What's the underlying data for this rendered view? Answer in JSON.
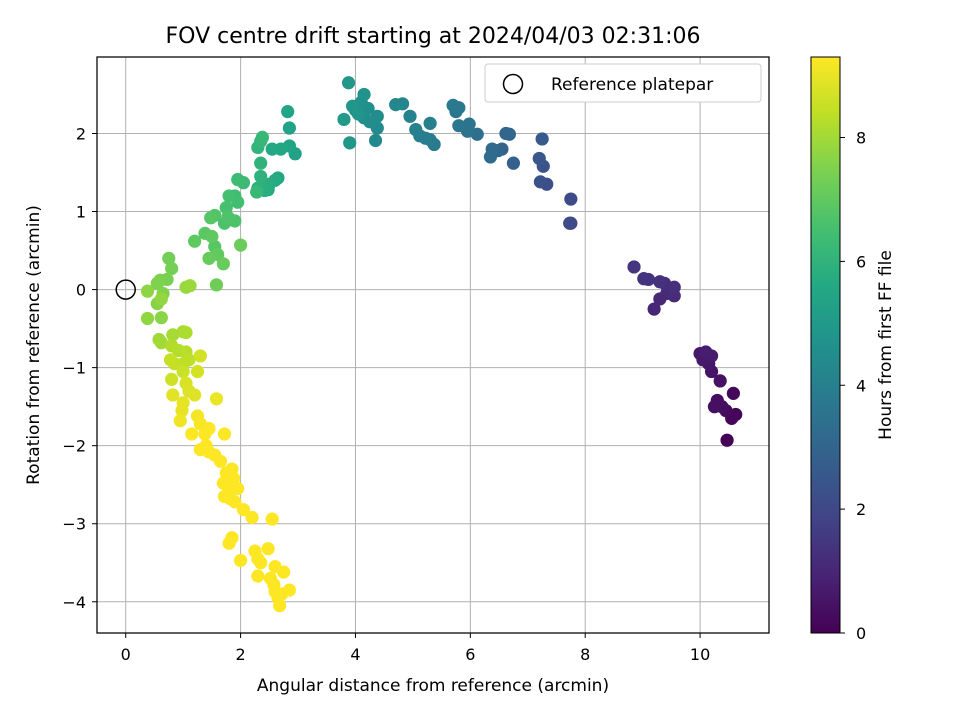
{
  "chart_data": {
    "type": "scatter",
    "title": "FOV centre drift starting at 2024/04/03 02:31:06",
    "xlabel": "Angular distance from reference (arcmin)",
    "ylabel": "Rotation from reference (arcmin)",
    "colorbar_label": "Hours from first FF file",
    "xlim": [
      -0.5,
      11.2
    ],
    "ylim": [
      -4.4,
      2.98
    ],
    "clim": [
      0,
      9.3
    ],
    "colormap": "viridis",
    "x_ticks": [
      0,
      2,
      4,
      6,
      8,
      10
    ],
    "y_ticks": [
      -4,
      -3,
      -2,
      -1,
      0,
      1,
      2
    ],
    "colorbar_ticks": [
      0,
      2,
      4,
      6,
      8
    ],
    "grid": true,
    "legend": {
      "position": "top-right",
      "entries": [
        "Reference platepar"
      ]
    },
    "reference_point": {
      "x": 0,
      "y": 0
    },
    "points": [
      {
        "x": 10.47,
        "y": -1.93,
        "h": 0.05
      },
      {
        "x": 10.62,
        "y": -1.6,
        "h": 0.1
      },
      {
        "x": 10.55,
        "y": -1.65,
        "h": 0.15
      },
      {
        "x": 10.58,
        "y": -1.33,
        "h": 0.2
      },
      {
        "x": 10.45,
        "y": -1.55,
        "h": 0.25
      },
      {
        "x": 10.3,
        "y": -1.42,
        "h": 0.3
      },
      {
        "x": 10.38,
        "y": -1.5,
        "h": 0.35
      },
      {
        "x": 10.25,
        "y": -1.5,
        "h": 0.4
      },
      {
        "x": 10.35,
        "y": -1.17,
        "h": 0.45
      },
      {
        "x": 10.2,
        "y": -1.05,
        "h": 0.5
      },
      {
        "x": 10.15,
        "y": -0.95,
        "h": 0.55
      },
      {
        "x": 10.0,
        "y": -0.82,
        "h": 0.6
      },
      {
        "x": 10.05,
        "y": -0.9,
        "h": 0.65
      },
      {
        "x": 10.2,
        "y": -0.85,
        "h": 0.7
      },
      {
        "x": 10.1,
        "y": -0.8,
        "h": 0.75
      },
      {
        "x": 9.2,
        "y": -0.25,
        "h": 1.0
      },
      {
        "x": 9.3,
        "y": -0.12,
        "h": 1.05
      },
      {
        "x": 9.42,
        "y": -0.05,
        "h": 1.1
      },
      {
        "x": 9.55,
        "y": -0.08,
        "h": 1.15
      },
      {
        "x": 9.38,
        "y": 0.08,
        "h": 1.2
      },
      {
        "x": 9.55,
        "y": 0.03,
        "h": 1.25
      },
      {
        "x": 9.3,
        "y": 0.1,
        "h": 1.3
      },
      {
        "x": 9.1,
        "y": 0.13,
        "h": 1.35
      },
      {
        "x": 9.02,
        "y": 0.14,
        "h": 1.4
      },
      {
        "x": 8.85,
        "y": 0.29,
        "h": 1.45
      },
      {
        "x": 7.75,
        "y": 0.85,
        "h": 2.0
      },
      {
        "x": 7.73,
        "y": 0.85,
        "h": 2.05
      },
      {
        "x": 7.75,
        "y": 1.16,
        "h": 2.1
      },
      {
        "x": 7.33,
        "y": 1.35,
        "h": 2.2
      },
      {
        "x": 7.22,
        "y": 1.38,
        "h": 2.3
      },
      {
        "x": 7.27,
        "y": 1.58,
        "h": 2.4
      },
      {
        "x": 7.2,
        "y": 1.68,
        "h": 2.5
      },
      {
        "x": 7.25,
        "y": 1.93,
        "h": 2.6
      },
      {
        "x": 6.75,
        "y": 1.62,
        "h": 2.8
      },
      {
        "x": 6.55,
        "y": 1.8,
        "h": 2.9
      },
      {
        "x": 6.62,
        "y": 2.0,
        "h": 3.0
      },
      {
        "x": 6.68,
        "y": 1.99,
        "h": 3.05
      },
      {
        "x": 6.48,
        "y": 1.78,
        "h": 3.1
      },
      {
        "x": 6.35,
        "y": 1.7,
        "h": 3.2
      },
      {
        "x": 6.38,
        "y": 1.8,
        "h": 3.25
      },
      {
        "x": 6.12,
        "y": 1.99,
        "h": 3.4
      },
      {
        "x": 5.95,
        "y": 2.03,
        "h": 3.5
      },
      {
        "x": 5.98,
        "y": 2.12,
        "h": 3.55
      },
      {
        "x": 5.8,
        "y": 2.1,
        "h": 3.6
      },
      {
        "x": 5.75,
        "y": 2.28,
        "h": 3.65
      },
      {
        "x": 5.8,
        "y": 2.33,
        "h": 3.7
      },
      {
        "x": 5.7,
        "y": 2.36,
        "h": 3.75
      },
      {
        "x": 5.37,
        "y": 1.86,
        "h": 3.8
      },
      {
        "x": 5.3,
        "y": 1.92,
        "h": 3.85
      },
      {
        "x": 5.22,
        "y": 1.94,
        "h": 3.9
      },
      {
        "x": 5.12,
        "y": 1.97,
        "h": 3.95
      },
      {
        "x": 5.05,
        "y": 2.05,
        "h": 4.0
      },
      {
        "x": 5.3,
        "y": 2.13,
        "h": 4.05
      },
      {
        "x": 4.95,
        "y": 2.22,
        "h": 4.1
      },
      {
        "x": 4.82,
        "y": 2.38,
        "h": 4.2
      },
      {
        "x": 4.7,
        "y": 2.37,
        "h": 4.25
      },
      {
        "x": 4.35,
        "y": 1.91,
        "h": 4.35
      },
      {
        "x": 4.38,
        "y": 2.07,
        "h": 4.4
      },
      {
        "x": 4.38,
        "y": 2.22,
        "h": 4.45
      },
      {
        "x": 4.25,
        "y": 2.15,
        "h": 4.5
      },
      {
        "x": 4.15,
        "y": 2.2,
        "h": 4.55
      },
      {
        "x": 4.22,
        "y": 2.32,
        "h": 4.6
      },
      {
        "x": 4.1,
        "y": 2.4,
        "h": 4.65
      },
      {
        "x": 4.15,
        "y": 2.5,
        "h": 4.7
      },
      {
        "x": 4.0,
        "y": 2.3,
        "h": 4.75
      },
      {
        "x": 4.05,
        "y": 2.25,
        "h": 4.8
      },
      {
        "x": 3.95,
        "y": 2.35,
        "h": 4.85
      },
      {
        "x": 3.9,
        "y": 1.88,
        "h": 4.9
      },
      {
        "x": 3.88,
        "y": 2.65,
        "h": 4.95
      },
      {
        "x": 3.8,
        "y": 2.18,
        "h": 5.0
      },
      {
        "x": 2.95,
        "y": 1.74,
        "h": 5.3
      },
      {
        "x": 2.85,
        "y": 2.07,
        "h": 5.35
      },
      {
        "x": 2.82,
        "y": 2.28,
        "h": 5.4
      },
      {
        "x": 2.85,
        "y": 1.84,
        "h": 5.45
      },
      {
        "x": 2.65,
        "y": 1.43,
        "h": 5.5
      },
      {
        "x": 2.7,
        "y": 1.8,
        "h": 5.55
      },
      {
        "x": 2.55,
        "y": 1.8,
        "h": 5.6
      },
      {
        "x": 2.6,
        "y": 1.4,
        "h": 5.65
      },
      {
        "x": 2.48,
        "y": 1.28,
        "h": 5.7
      },
      {
        "x": 2.5,
        "y": 1.35,
        "h": 5.75
      },
      {
        "x": 2.42,
        "y": 1.27,
        "h": 5.8
      },
      {
        "x": 2.38,
        "y": 1.34,
        "h": 5.85
      },
      {
        "x": 2.3,
        "y": 1.3,
        "h": 5.9
      },
      {
        "x": 2.35,
        "y": 1.45,
        "h": 5.95
      },
      {
        "x": 2.35,
        "y": 1.62,
        "h": 6.0
      },
      {
        "x": 2.3,
        "y": 1.82,
        "h": 6.05
      },
      {
        "x": 2.35,
        "y": 1.9,
        "h": 6.1
      },
      {
        "x": 2.38,
        "y": 1.95,
        "h": 6.15
      },
      {
        "x": 2.28,
        "y": 1.25,
        "h": 6.2
      },
      {
        "x": 2.05,
        "y": 1.37,
        "h": 6.3
      },
      {
        "x": 1.95,
        "y": 1.41,
        "h": 6.35
      },
      {
        "x": 1.9,
        "y": 1.2,
        "h": 6.4
      },
      {
        "x": 1.95,
        "y": 1.12,
        "h": 6.45
      },
      {
        "x": 1.8,
        "y": 1.2,
        "h": 6.5
      },
      {
        "x": 1.75,
        "y": 1.05,
        "h": 6.55
      },
      {
        "x": 1.72,
        "y": 0.85,
        "h": 6.6
      },
      {
        "x": 1.9,
        "y": 0.88,
        "h": 6.65
      },
      {
        "x": 1.78,
        "y": 0.93,
        "h": 6.7
      },
      {
        "x": 1.55,
        "y": 0.95,
        "h": 6.75
      },
      {
        "x": 1.48,
        "y": 0.92,
        "h": 6.8
      },
      {
        "x": 1.55,
        "y": 0.55,
        "h": 6.85
      },
      {
        "x": 1.38,
        "y": 0.72,
        "h": 6.9
      },
      {
        "x": 1.2,
        "y": 0.62,
        "h": 6.95
      },
      {
        "x": 1.5,
        "y": 0.68,
        "h": 7.0
      },
      {
        "x": 1.6,
        "y": 0.45,
        "h": 7.05
      },
      {
        "x": 1.45,
        "y": 0.4,
        "h": 7.1
      },
      {
        "x": 1.7,
        "y": 0.33,
        "h": 7.15
      },
      {
        "x": 2.0,
        "y": 0.57,
        "h": 7.2
      },
      {
        "x": 1.58,
        "y": 0.06,
        "h": 7.25
      },
      {
        "x": 0.75,
        "y": 0.4,
        "h": 7.3
      },
      {
        "x": 0.8,
        "y": 0.27,
        "h": 7.35
      },
      {
        "x": 0.72,
        "y": 0.13,
        "h": 7.4
      },
      {
        "x": 0.6,
        "y": 0.12,
        "h": 7.45
      },
      {
        "x": 0.55,
        "y": 0.08,
        "h": 7.5
      },
      {
        "x": 0.65,
        "y": -0.05,
        "h": 7.55
      },
      {
        "x": 0.55,
        "y": -0.18,
        "h": 7.6
      },
      {
        "x": 0.62,
        "y": -0.36,
        "h": 7.65
      },
      {
        "x": 0.38,
        "y": -0.02,
        "h": 7.7
      },
      {
        "x": 0.38,
        "y": -0.37,
        "h": 7.75
      },
      {
        "x": 0.62,
        "y": -0.12,
        "h": 7.8
      },
      {
        "x": 1.05,
        "y": 0.03,
        "h": 7.85
      },
      {
        "x": 1.12,
        "y": 0.05,
        "h": 7.9
      },
      {
        "x": 0.58,
        "y": -0.64,
        "h": 7.95
      },
      {
        "x": 0.62,
        "y": -0.68,
        "h": 8.0
      },
      {
        "x": 0.82,
        "y": -0.58,
        "h": 8.05
      },
      {
        "x": 1.0,
        "y": -0.54,
        "h": 8.1
      },
      {
        "x": 1.05,
        "y": -0.55,
        "h": 8.15
      },
      {
        "x": 0.8,
        "y": -0.72,
        "h": 8.2
      },
      {
        "x": 0.92,
        "y": -0.78,
        "h": 8.25
      },
      {
        "x": 1.05,
        "y": -0.8,
        "h": 8.3
      },
      {
        "x": 1.1,
        "y": -0.9,
        "h": 8.35
      },
      {
        "x": 1.0,
        "y": -0.95,
        "h": 8.4
      },
      {
        "x": 0.85,
        "y": -0.95,
        "h": 8.45
      },
      {
        "x": 0.78,
        "y": -0.9,
        "h": 8.5
      },
      {
        "x": 1.0,
        "y": -1.05,
        "h": 8.55
      },
      {
        "x": 0.8,
        "y": -1.15,
        "h": 8.6
      },
      {
        "x": 1.3,
        "y": -0.85,
        "h": 8.65
      },
      {
        "x": 1.25,
        "y": -1.05,
        "h": 8.7
      },
      {
        "x": 1.05,
        "y": -1.2,
        "h": 8.75
      },
      {
        "x": 1.1,
        "y": -1.3,
        "h": 8.8
      },
      {
        "x": 1.2,
        "y": -1.35,
        "h": 8.85
      },
      {
        "x": 0.82,
        "y": -1.35,
        "h": 8.9
      },
      {
        "x": 1.0,
        "y": -1.45,
        "h": 8.95
      },
      {
        "x": 0.98,
        "y": -1.55,
        "h": 9.0
      },
      {
        "x": 1.58,
        "y": -1.4,
        "h": 9.05
      },
      {
        "x": 0.95,
        "y": -1.68,
        "h": 9.1
      },
      {
        "x": 1.25,
        "y": -1.62,
        "h": 9.15
      },
      {
        "x": 1.3,
        "y": -1.72,
        "h": 9.2
      },
      {
        "x": 1.45,
        "y": -1.78,
        "h": 9.25
      },
      {
        "x": 1.38,
        "y": -1.85,
        "h": 9.3
      },
      {
        "x": 1.15,
        "y": -1.85,
        "h": 9.35
      },
      {
        "x": 1.4,
        "y": -2.0,
        "h": 9.4
      },
      {
        "x": 1.3,
        "y": -2.05,
        "h": 9.45
      },
      {
        "x": 1.72,
        "y": -1.85,
        "h": 9.5
      },
      {
        "x": 1.45,
        "y": -2.08,
        "h": 9.55
      },
      {
        "x": 1.55,
        "y": -2.12,
        "h": 9.6
      },
      {
        "x": 1.65,
        "y": -2.2,
        "h": 9.6
      },
      {
        "x": 1.85,
        "y": -2.3,
        "h": 9.6
      },
      {
        "x": 1.75,
        "y": -2.35,
        "h": 9.6
      },
      {
        "x": 1.88,
        "y": -2.42,
        "h": 9.6
      },
      {
        "x": 1.7,
        "y": -2.48,
        "h": 9.6
      },
      {
        "x": 1.8,
        "y": -2.55,
        "h": 9.6
      },
      {
        "x": 1.95,
        "y": -2.55,
        "h": 9.6
      },
      {
        "x": 1.72,
        "y": -2.65,
        "h": 9.6
      },
      {
        "x": 1.82,
        "y": -2.68,
        "h": 9.6
      },
      {
        "x": 1.9,
        "y": -2.72,
        "h": 9.6
      },
      {
        "x": 2.05,
        "y": -2.82,
        "h": 9.6
      },
      {
        "x": 2.2,
        "y": -2.92,
        "h": 9.6
      },
      {
        "x": 2.55,
        "y": -2.94,
        "h": 9.6
      },
      {
        "x": 1.85,
        "y": -3.18,
        "h": 9.6
      },
      {
        "x": 1.8,
        "y": -3.25,
        "h": 9.6
      },
      {
        "x": 2.25,
        "y": -3.35,
        "h": 9.6
      },
      {
        "x": 2.48,
        "y": -3.32,
        "h": 9.6
      },
      {
        "x": 2.3,
        "y": -3.45,
        "h": 9.6
      },
      {
        "x": 2.0,
        "y": -3.47,
        "h": 9.6
      },
      {
        "x": 2.35,
        "y": -3.5,
        "h": 9.6
      },
      {
        "x": 2.6,
        "y": -3.55,
        "h": 9.6
      },
      {
        "x": 2.3,
        "y": -3.67,
        "h": 9.6
      },
      {
        "x": 2.75,
        "y": -3.62,
        "h": 9.6
      },
      {
        "x": 2.52,
        "y": -3.7,
        "h": 9.6
      },
      {
        "x": 2.58,
        "y": -3.78,
        "h": 9.6
      },
      {
        "x": 2.85,
        "y": -3.85,
        "h": 9.6
      },
      {
        "x": 2.6,
        "y": -3.87,
        "h": 9.6
      },
      {
        "x": 2.72,
        "y": -3.9,
        "h": 9.6
      },
      {
        "x": 2.65,
        "y": -3.95,
        "h": 9.6
      },
      {
        "x": 2.68,
        "y": -4.05,
        "h": 9.6
      }
    ]
  }
}
